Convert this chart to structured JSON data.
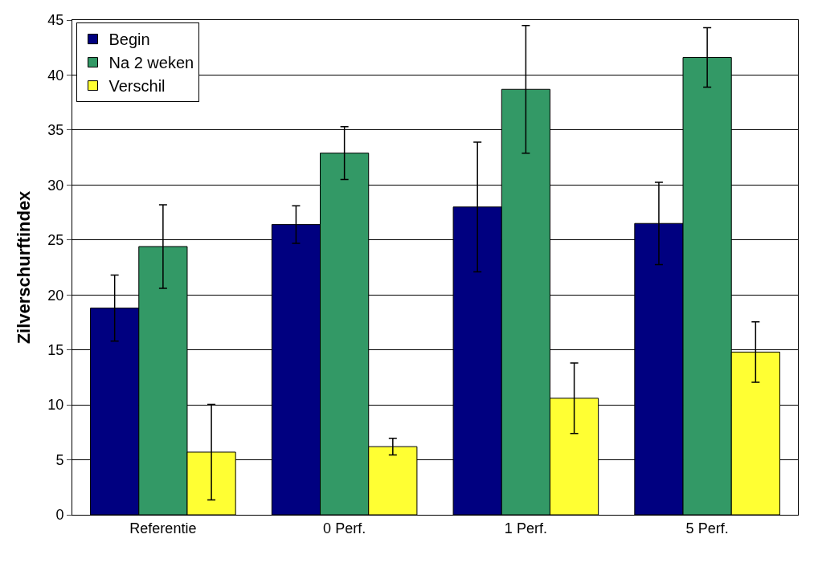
{
  "chart_data": {
    "type": "bar",
    "ylabel": "Zilverschurftindex",
    "categories": [
      "Referentie",
      "0 Perf.",
      "1 Perf.",
      "5 Perf."
    ],
    "series": [
      {
        "name": "Begin",
        "color": "#000080",
        "values": [
          18.8,
          26.4,
          28.0,
          26.5
        ],
        "errors": [
          3.0,
          1.7,
          5.9,
          3.75
        ]
      },
      {
        "name": "Na 2 weken",
        "color": "#339966",
        "values": [
          24.4,
          32.9,
          38.7,
          41.6
        ],
        "errors": [
          3.8,
          2.4,
          5.8,
          2.7
        ]
      },
      {
        "name": "Verschil",
        "color": "#ffff33",
        "values": [
          5.7,
          6.2,
          10.6,
          14.8
        ],
        "errors": [
          4.35,
          0.75,
          3.2,
          2.75
        ]
      }
    ],
    "ylim": [
      0,
      45
    ],
    "yticks": [
      0,
      5,
      10,
      15,
      20,
      25,
      30,
      35,
      40,
      45
    ],
    "grid": "y",
    "legend": "top left"
  }
}
